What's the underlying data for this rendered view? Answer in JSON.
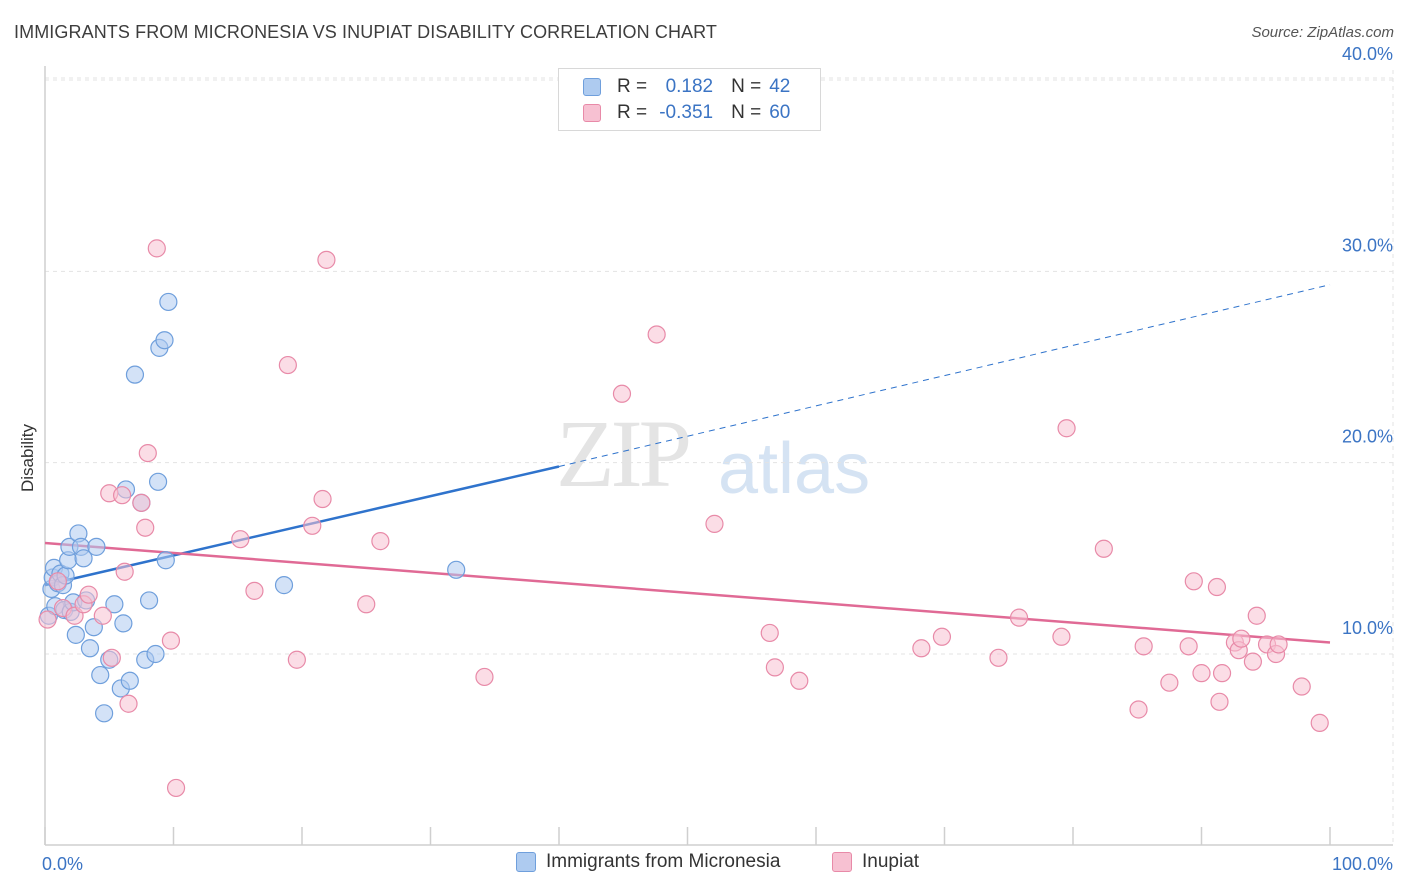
{
  "title": "IMMIGRANTS FROM MICRONESIA VS INUPIAT DISABILITY CORRELATION CHART",
  "source": "Source: ZipAtlas.com",
  "watermark": {
    "zip": "ZIP",
    "atlas": "atlas"
  },
  "colors": {
    "blue_fill": "#aecbf0",
    "blue_stroke": "#6f9fdc",
    "blue_line": "#2f73cc",
    "pink_fill": "#f7c1d2",
    "pink_stroke": "#e88aa8",
    "pink_line": "#e06a95",
    "tick_text": "#3b74c4",
    "grid": "#e3e3e3"
  },
  "legend": {
    "rows": [
      {
        "r_label": "R =",
        "r_value": "0.182",
        "n_label": "N =",
        "n_value": "42",
        "series": "blue"
      },
      {
        "r_label": "R =",
        "r_value": "-0.351",
        "n_label": "N =",
        "n_value": "60",
        "series": "pink"
      }
    ]
  },
  "bottom_legend": [
    {
      "label": "Immigrants from Micronesia",
      "series": "blue"
    },
    {
      "label": "Inupiat",
      "series": "pink"
    }
  ],
  "chart_data": {
    "type": "scatter",
    "title": "IMMIGRANTS FROM MICRONESIA VS INUPIAT DISABILITY CORRELATION CHART",
    "xlabel": "",
    "ylabel": "Disability",
    "xlim": [
      0,
      100
    ],
    "ylim": [
      0,
      42
    ],
    "x_tick_labels": [
      "0.0%",
      "100.0%"
    ],
    "y_ticks": [
      10,
      20,
      30,
      40
    ],
    "y_tick_labels": [
      "10.0%",
      "20.0%",
      "30.0%",
      "40.0%"
    ],
    "grid": true,
    "series": [
      {
        "name": "Immigrants from Micronesia",
        "color": "blue",
        "regression": {
          "x0": 0,
          "y0": 13.6,
          "x1": 40,
          "y1": 19.8,
          "dashed_to_x": 100,
          "dashed_to_y": 29.3
        },
        "points": [
          [
            0.3,
            12.0
          ],
          [
            0.5,
            13.4
          ],
          [
            0.6,
            14.0
          ],
          [
            0.7,
            14.5
          ],
          [
            0.8,
            12.5
          ],
          [
            1.0,
            13.7
          ],
          [
            1.2,
            14.2
          ],
          [
            1.4,
            13.6
          ],
          [
            1.5,
            12.3
          ],
          [
            1.6,
            14.1
          ],
          [
            1.8,
            14.9
          ],
          [
            1.9,
            15.6
          ],
          [
            2.0,
            12.2
          ],
          [
            2.2,
            12.7
          ],
          [
            2.4,
            11.0
          ],
          [
            2.6,
            16.3
          ],
          [
            2.8,
            15.6
          ],
          [
            3.0,
            15.0
          ],
          [
            3.2,
            12.8
          ],
          [
            3.5,
            10.3
          ],
          [
            3.8,
            11.4
          ],
          [
            4.0,
            15.6
          ],
          [
            4.3,
            8.9
          ],
          [
            4.6,
            6.9
          ],
          [
            5.0,
            9.7
          ],
          [
            5.4,
            12.6
          ],
          [
            5.9,
            8.2
          ],
          [
            6.1,
            11.6
          ],
          [
            6.3,
            18.6
          ],
          [
            6.6,
            8.6
          ],
          [
            7.0,
            24.6
          ],
          [
            7.5,
            17.9
          ],
          [
            7.8,
            9.7
          ],
          [
            8.1,
            12.8
          ],
          [
            8.6,
            10.0
          ],
          [
            8.8,
            19.0
          ],
          [
            8.9,
            26.0
          ],
          [
            9.3,
            26.4
          ],
          [
            9.4,
            14.9
          ],
          [
            9.6,
            28.4
          ],
          [
            18.6,
            13.6
          ],
          [
            32.0,
            14.4
          ]
        ]
      },
      {
        "name": "Inupiat",
        "color": "pink",
        "regression": {
          "x0": 0,
          "y0": 15.8,
          "x1": 100,
          "y1": 10.6
        },
        "points": [
          [
            0.2,
            11.8
          ],
          [
            1.0,
            13.8
          ],
          [
            1.4,
            12.4
          ],
          [
            2.3,
            12.0
          ],
          [
            3.0,
            12.6
          ],
          [
            3.4,
            13.1
          ],
          [
            4.5,
            12.0
          ],
          [
            5.0,
            18.4
          ],
          [
            5.2,
            9.8
          ],
          [
            6.0,
            18.3
          ],
          [
            6.2,
            14.3
          ],
          [
            6.5,
            7.4
          ],
          [
            7.5,
            17.9
          ],
          [
            7.8,
            16.6
          ],
          [
            8.0,
            20.5
          ],
          [
            8.7,
            31.2
          ],
          [
            9.8,
            10.7
          ],
          [
            10.2,
            3.0
          ],
          [
            15.2,
            16.0
          ],
          [
            16.3,
            13.3
          ],
          [
            18.9,
            25.1
          ],
          [
            19.6,
            9.7
          ],
          [
            20.8,
            16.7
          ],
          [
            21.6,
            18.1
          ],
          [
            21.9,
            30.6
          ],
          [
            25.0,
            12.6
          ],
          [
            26.1,
            15.9
          ],
          [
            34.2,
            8.8
          ],
          [
            44.9,
            23.6
          ],
          [
            47.6,
            26.7
          ],
          [
            52.1,
            16.8
          ],
          [
            56.4,
            11.1
          ],
          [
            56.8,
            9.3
          ],
          [
            58.7,
            8.6
          ],
          [
            68.2,
            10.3
          ],
          [
            69.8,
            10.9
          ],
          [
            74.2,
            9.8
          ],
          [
            75.8,
            11.9
          ],
          [
            79.1,
            10.9
          ],
          [
            79.5,
            21.8
          ],
          [
            82.4,
            15.5
          ],
          [
            85.1,
            7.1
          ],
          [
            85.5,
            10.4
          ],
          [
            87.5,
            8.5
          ],
          [
            89.0,
            10.4
          ],
          [
            89.4,
            13.8
          ],
          [
            90.0,
            9.0
          ],
          [
            91.2,
            13.5
          ],
          [
            91.4,
            7.5
          ],
          [
            91.6,
            9.0
          ],
          [
            92.6,
            10.6
          ],
          [
            92.9,
            10.2
          ],
          [
            93.1,
            10.8
          ],
          [
            94.0,
            9.6
          ],
          [
            94.3,
            12.0
          ],
          [
            95.1,
            10.5
          ],
          [
            95.8,
            10.0
          ],
          [
            97.8,
            8.3
          ],
          [
            99.2,
            6.4
          ],
          [
            96.0,
            10.5
          ]
        ]
      }
    ]
  }
}
